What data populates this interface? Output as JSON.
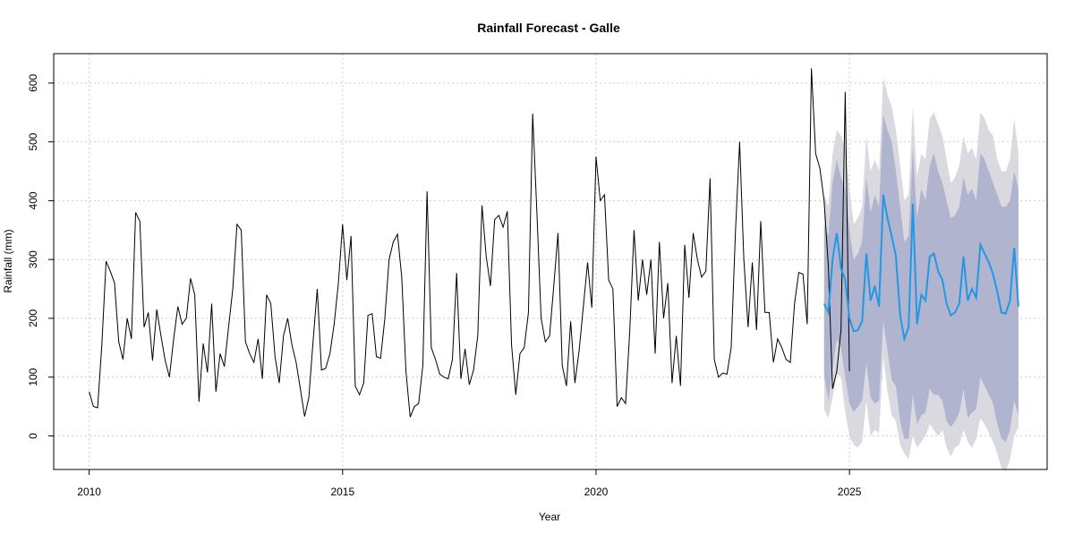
{
  "chart_data": {
    "type": "line",
    "title": "Rainfall Forecast - Galle",
    "xlabel": "Year",
    "ylabel": "Rainfall (mm)",
    "xlim": [
      2009.3,
      2028.9
    ],
    "ylim": [
      -57,
      650
    ],
    "xticks": [
      2010,
      2015,
      2020,
      2025
    ],
    "yticks": [
      0,
      100,
      200,
      300,
      400,
      500,
      600
    ],
    "grid": true,
    "colors": {
      "history": "#000000",
      "forecast": "#2297e6",
      "band80": "#b0b4cf",
      "band95": "#d9d9df"
    },
    "history": {
      "start": 2010.0,
      "step": 0.08333,
      "values": [
        75,
        50,
        48,
        155,
        297,
        280,
        260,
        160,
        130,
        200,
        165,
        380,
        365,
        185,
        210,
        128,
        215,
        170,
        128,
        100,
        165,
        220,
        190,
        200,
        268,
        240,
        58,
        157,
        108,
        225,
        75,
        140,
        118,
        185,
        250,
        360,
        350,
        160,
        140,
        125,
        165,
        97,
        240,
        225,
        135,
        90,
        170,
        200,
        155,
        125,
        80,
        33,
        65,
        160,
        250,
        112,
        115,
        140,
        190,
        260,
        360,
        265,
        340,
        85,
        70,
        90,
        205,
        208,
        135,
        132,
        200,
        300,
        330,
        343,
        270,
        110,
        32,
        50,
        55,
        120,
        416,
        150,
        130,
        105,
        100,
        97,
        130,
        277,
        97,
        148,
        87,
        112,
        170,
        392,
        305,
        255,
        368,
        375,
        355,
        382,
        155,
        70,
        140,
        150,
        210,
        548,
        380,
        200,
        160,
        170,
        255,
        345,
        120,
        85,
        195,
        90,
        145,
        220,
        295,
        218,
        475,
        400,
        410,
        265,
        250,
        50,
        65,
        55,
        180,
        350,
        230,
        300,
        240,
        300,
        140,
        330,
        200,
        260,
        90,
        170,
        85,
        325,
        235,
        345,
        300,
        270,
        280,
        438,
        130,
        100,
        107,
        105,
        150,
        345,
        500,
        300,
        185,
        295,
        180,
        365,
        210,
        210,
        125,
        165,
        150,
        130,
        125,
        225,
        278,
        275,
        190,
        625,
        480,
        455,
        400,
        290,
        80,
        110,
        180,
        585,
        110
      ]
    },
    "forecast": {
      "start": 2024.5,
      "step": 0.08333,
      "mean": [
        225,
        210,
        300,
        345,
        285,
        265,
        200,
        178,
        180,
        195,
        310,
        230,
        255,
        220,
        410,
        370,
        340,
        305,
        205,
        165,
        185,
        395,
        190,
        240,
        230,
        305,
        310,
        280,
        265,
        225,
        205,
        210,
        225,
        305,
        230,
        250,
        235,
        325,
        310,
        295,
        275,
        245,
        210,
        208,
        230,
        320,
        220
      ],
      "lo80": [
        105,
        60,
        115,
        165,
        150,
        100,
        55,
        40,
        50,
        60,
        125,
        65,
        55,
        60,
        195,
        145,
        95,
        85,
        25,
        -5,
        -5,
        70,
        20,
        35,
        40,
        80,
        70,
        70,
        60,
        25,
        15,
        25,
        40,
        80,
        30,
        40,
        45,
        100,
        85,
        70,
        55,
        20,
        -5,
        -10,
        10,
        60,
        35
      ],
      "hi80": [
        360,
        340,
        430,
        470,
        440,
        420,
        350,
        300,
        310,
        330,
        440,
        380,
        410,
        390,
        545,
        520,
        500,
        450,
        390,
        330,
        340,
        490,
        370,
        420,
        400,
        460,
        480,
        450,
        430,
        400,
        370,
        375,
        390,
        440,
        410,
        420,
        400,
        480,
        470,
        450,
        430,
        410,
        390,
        390,
        400,
        450,
        420
      ],
      "lo95": [
        45,
        30,
        65,
        105,
        100,
        40,
        0,
        -15,
        -20,
        -10,
        60,
        0,
        10,
        5,
        135,
        75,
        35,
        25,
        -15,
        -30,
        -40,
        0,
        -20,
        -10,
        0,
        20,
        10,
        0,
        10,
        -20,
        -35,
        -20,
        -15,
        10,
        -10,
        -20,
        -5,
        30,
        20,
        5,
        -10,
        -30,
        -55,
        -60,
        -40,
        0,
        15
      ],
      "hi95": [
        410,
        390,
        480,
        520,
        510,
        490,
        420,
        360,
        370,
        390,
        510,
        450,
        470,
        450,
        610,
        580,
        560,
        520,
        460,
        400,
        410,
        560,
        440,
        480,
        470,
        540,
        550,
        530,
        510,
        470,
        430,
        440,
        460,
        510,
        480,
        490,
        470,
        550,
        540,
        520,
        510,
        470,
        450,
        450,
        470,
        540,
        480
      ]
    }
  }
}
